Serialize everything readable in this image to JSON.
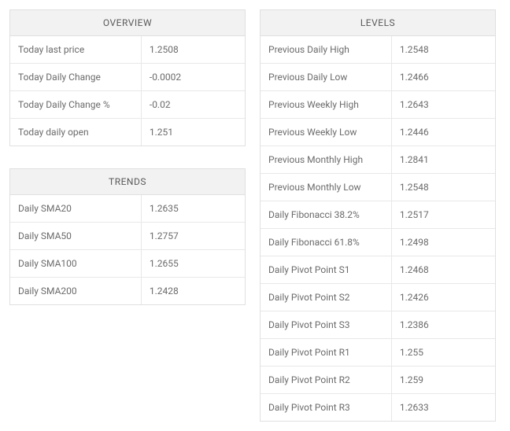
{
  "colors": {
    "border": "#e0e0e0",
    "row_border": "#e8e8e8",
    "header_bg": "#f2f2f2",
    "text": "#6b6b6b",
    "header_text": "#5a5a5a",
    "background": "#ffffff"
  },
  "typography": {
    "font_family": "-apple-system, BlinkMacSystemFont, Segoe UI, Roboto, Arial, sans-serif",
    "body_fontsize": 12,
    "header_fontsize": 12
  },
  "overview": {
    "title": "OVERVIEW",
    "rows": [
      {
        "label": "Today last price",
        "value": "1.2508"
      },
      {
        "label": "Today Daily Change",
        "value": "-0.0002"
      },
      {
        "label": "Today Daily Change %",
        "value": "-0.02"
      },
      {
        "label": "Today daily open",
        "value": "1.251"
      }
    ]
  },
  "trends": {
    "title": "TRENDS",
    "rows": [
      {
        "label": "Daily SMA20",
        "value": "1.2635"
      },
      {
        "label": "Daily SMA50",
        "value": "1.2757"
      },
      {
        "label": "Daily SMA100",
        "value": "1.2655"
      },
      {
        "label": "Daily SMA200",
        "value": "1.2428"
      }
    ]
  },
  "levels": {
    "title": "LEVELS",
    "rows": [
      {
        "label": "Previous Daily High",
        "value": "1.2548"
      },
      {
        "label": "Previous Daily Low",
        "value": "1.2466"
      },
      {
        "label": "Previous Weekly High",
        "value": "1.2643"
      },
      {
        "label": "Previous Weekly Low",
        "value": "1.2446"
      },
      {
        "label": "Previous Monthly High",
        "value": "1.2841"
      },
      {
        "label": "Previous Monthly Low",
        "value": "1.2548"
      },
      {
        "label": "Daily Fibonacci 38.2%",
        "value": "1.2517"
      },
      {
        "label": "Daily Fibonacci 61.8%",
        "value": "1.2498"
      },
      {
        "label": "Daily Pivot Point S1",
        "value": "1.2468"
      },
      {
        "label": "Daily Pivot Point S2",
        "value": "1.2426"
      },
      {
        "label": "Daily Pivot Point S3",
        "value": "1.2386"
      },
      {
        "label": "Daily Pivot Point R1",
        "value": "1.255"
      },
      {
        "label": "Daily Pivot Point R2",
        "value": "1.259"
      },
      {
        "label": "Daily Pivot Point R3",
        "value": "1.2633"
      }
    ]
  }
}
